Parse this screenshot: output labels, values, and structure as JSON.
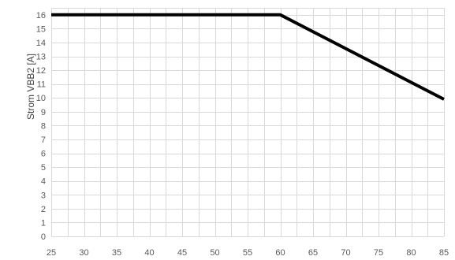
{
  "chart_data": {
    "type": "line",
    "title": "",
    "xlabel": "",
    "ylabel": "Strom VBB2 [A]",
    "xlim": [
      25,
      85
    ],
    "ylim": [
      0,
      16.5
    ],
    "x_ticks": [
      25,
      30,
      35,
      40,
      45,
      50,
      55,
      60,
      65,
      70,
      75,
      80,
      85
    ],
    "y_ticks": [
      0,
      1,
      2,
      3,
      4,
      5,
      6,
      7,
      8,
      9,
      10,
      11,
      12,
      13,
      14,
      15,
      16
    ],
    "grid": true,
    "series": [
      {
        "x": [
          25,
          60,
          85
        ],
        "y": [
          16,
          16,
          9.9
        ],
        "color": "#000000"
      }
    ]
  }
}
